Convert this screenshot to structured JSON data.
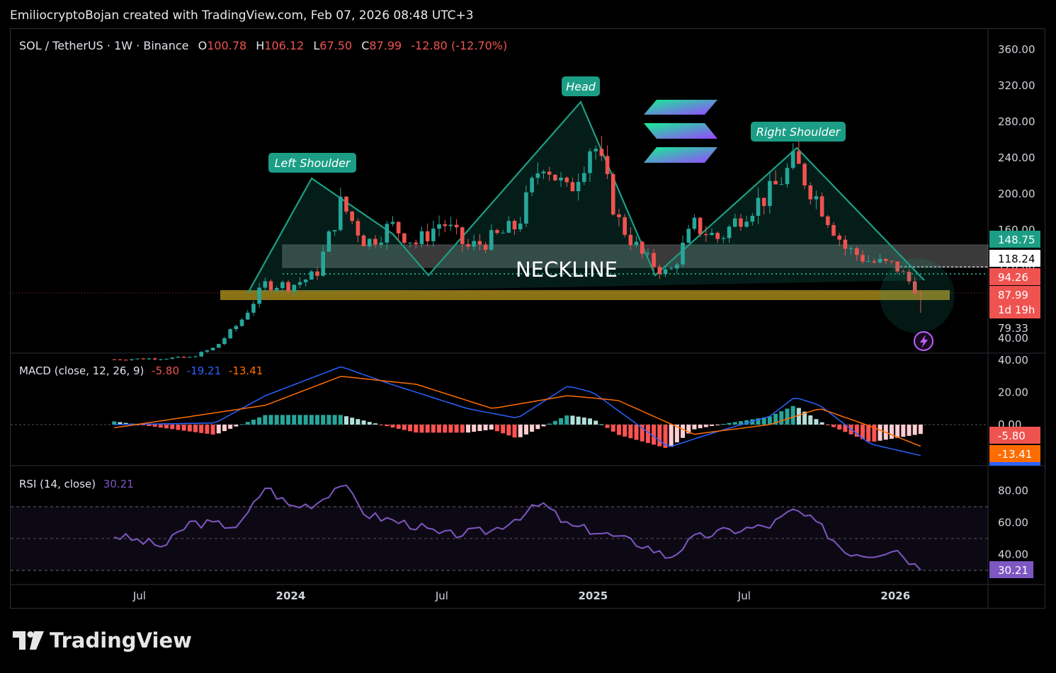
{
  "header": {
    "attribution": "EmiliocryptoBojan created with TradingView.com, Feb 07, 2026 08:48 UTC+3"
  },
  "legend": {
    "symbol": "SOL / TetherUS · 1W · Binance",
    "o_label": "O",
    "o_value": "100.78",
    "h_label": "H",
    "h_value": "106.12",
    "l_label": "L",
    "l_value": "67.50",
    "c_label": "C",
    "c_value": "87.99",
    "change": "-12.80 (-12.70%)"
  },
  "annotations": {
    "left_shoulder": "Left Shoulder",
    "head": "Head",
    "right_shoulder": "Right Shoulder",
    "neckline": "NECKLINE"
  },
  "price_badges": {
    "p1": "148.75",
    "p2": "118.24",
    "p3": "94.26",
    "p4": "87.99",
    "countdown": "1d 19h",
    "p5": "79.33"
  },
  "macd": {
    "label": "MACD (close, 12, 26, 9)",
    "v1": "-5.80",
    "v2": "-19.21",
    "v3": "-13.41",
    "badge1": "-5.80",
    "badge2": "-13.41"
  },
  "rsi": {
    "label": "RSI (14, close)",
    "value": "30.21",
    "badge": "30.21"
  },
  "footer": {
    "brand": "TradingView"
  },
  "colors": {
    "up": "#26a69a",
    "down": "#ef5350",
    "macd_line": "#2962ff",
    "signal_line": "#ff6d00",
    "rsi_line": "#7e57c2",
    "pattern": "#1c9e86",
    "neck_zone": "#6b6b6b",
    "support_zone": "#b8981e"
  },
  "chart_data": [
    {
      "type": "candlestick",
      "title": "SOL / TetherUS · 1W · Binance",
      "x_ticks": [
        "Jul",
        "2024",
        "Jul",
        "2025",
        "Jul",
        "2026"
      ],
      "y_ticks": [
        40,
        80,
        120,
        160,
        200,
        240,
        280,
        320,
        360
      ],
      "ylim": [
        35,
        370
      ],
      "last_close": 87.99,
      "pattern": "head and shoulders",
      "pattern_points": [
        {
          "label": "Left Shoulder",
          "date": "2024-03",
          "price": 210
        },
        {
          "label": "Head",
          "date": "2024-11",
          "price": 295
        },
        {
          "label": "Right Shoulder",
          "date": "2025-09",
          "price": 253
        }
      ],
      "close_path": [
        [
          "2023-06",
          17
        ],
        [
          "2023-09",
          19
        ],
        [
          "2023-10",
          30
        ],
        [
          "2023-11",
          58
        ],
        [
          "2023-12",
          100
        ],
        [
          "2024-01",
          98
        ],
        [
          "2024-02",
          110
        ],
        [
          "2024-03",
          190
        ],
        [
          "2024-04",
          145
        ],
        [
          "2024-05",
          165
        ],
        [
          "2024-06",
          145
        ],
        [
          "2024-07",
          170
        ],
        [
          "2024-08",
          140
        ],
        [
          "2024-09",
          150
        ],
        [
          "2024-10",
          165
        ],
        [
          "2024-11",
          240
        ],
        [
          "2024-12",
          200
        ],
        [
          "2025-01",
          260
        ],
        [
          "2025-02",
          170
        ],
        [
          "2025-03",
          130
        ],
        [
          "2025-04",
          110
        ],
        [
          "2025-05",
          165
        ],
        [
          "2025-06",
          150
        ],
        [
          "2025-07",
          180
        ],
        [
          "2025-08",
          200
        ],
        [
          "2025-09",
          235
        ],
        [
          "2025-10",
          190
        ],
        [
          "2025-11",
          140
        ],
        [
          "2025-12",
          125
        ],
        [
          "2026-01",
          120
        ],
        [
          "2026-02",
          88
        ]
      ],
      "levels": [
        148.75,
        118.24,
        94.26,
        79.33
      ]
    },
    {
      "type": "line",
      "title": "MACD (close, 12, 26, 9)",
      "y_ticks": [
        40,
        20,
        0
      ],
      "ylim": [
        -25,
        40
      ],
      "macd_path": [
        [
          "2023-06",
          0
        ],
        [
          "2023-10",
          1
        ],
        [
          "2023-12",
          18
        ],
        [
          "2024-03",
          36
        ],
        [
          "2024-05",
          25
        ],
        [
          "2024-08",
          10
        ],
        [
          "2024-10",
          4
        ],
        [
          "2024-12",
          24
        ],
        [
          "2025-01",
          20
        ],
        [
          "2025-04",
          -14
        ],
        [
          "2025-06",
          -4
        ],
        [
          "2025-08",
          5
        ],
        [
          "2025-09",
          17
        ],
        [
          "2025-10",
          12
        ],
        [
          "2025-12",
          -12
        ],
        [
          "2026-02",
          -19.21
        ]
      ],
      "signal_path": [
        [
          "2023-06",
          -2
        ],
        [
          "2023-12",
          12
        ],
        [
          "2024-03",
          30
        ],
        [
          "2024-06",
          25
        ],
        [
          "2024-09",
          10
        ],
        [
          "2024-12",
          18
        ],
        [
          "2025-02",
          15
        ],
        [
          "2025-05",
          -6
        ],
        [
          "2025-08",
          0
        ],
        [
          "2025-10",
          10
        ],
        [
          "2025-12",
          -1
        ],
        [
          "2026-02",
          -13.41
        ]
      ],
      "histogram_last": -5.8
    },
    {
      "type": "line",
      "title": "RSI (14, close)",
      "y_ticks": [
        80,
        60,
        40
      ],
      "ylim": [
        25,
        90
      ],
      "bands": [
        70,
        50,
        30
      ],
      "rsi_path": [
        [
          "2023-06",
          52
        ],
        [
          "2023-08",
          45
        ],
        [
          "2023-09",
          60
        ],
        [
          "2023-11",
          58
        ],
        [
          "2023-12",
          83
        ],
        [
          "2024-01",
          70
        ],
        [
          "2024-02",
          72
        ],
        [
          "2024-03",
          85
        ],
        [
          "2024-04",
          65
        ],
        [
          "2024-06",
          58
        ],
        [
          "2024-07",
          52
        ],
        [
          "2024-09",
          55
        ],
        [
          "2024-11",
          72
        ],
        [
          "2024-12",
          58
        ],
        [
          "2025-01",
          55
        ],
        [
          "2025-03",
          46
        ],
        [
          "2025-04",
          38
        ],
        [
          "2025-05",
          50
        ],
        [
          "2025-06",
          54
        ],
        [
          "2025-08",
          58
        ],
        [
          "2025-09",
          68
        ],
        [
          "2025-10",
          58
        ],
        [
          "2025-11",
          42
        ],
        [
          "2025-12",
          40
        ],
        [
          "2026-01",
          44
        ],
        [
          "2026-02",
          30.21
        ]
      ]
    }
  ]
}
